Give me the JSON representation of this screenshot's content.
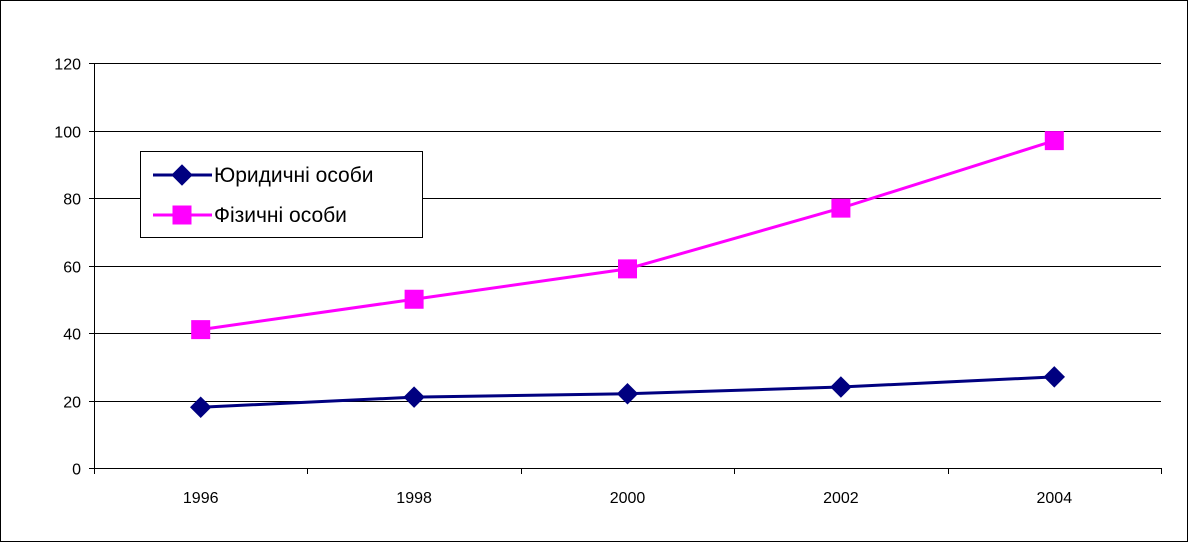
{
  "chart_data": {
    "type": "line",
    "title": "",
    "xlabel": "",
    "ylabel": "",
    "categories": [
      "1996",
      "1998",
      "2000",
      "2002",
      "2004"
    ],
    "ylim": [
      0,
      120
    ],
    "yticks": [
      0,
      20,
      40,
      60,
      80,
      100,
      120
    ],
    "grid": true,
    "legend_placement": "top-left",
    "series": [
      {
        "name": "Юридичні особи",
        "values": [
          18,
          21,
          22,
          24,
          27
        ],
        "color": "#000080",
        "marker": "diamond"
      },
      {
        "name": "Фізичні особи",
        "values": [
          41,
          50,
          59,
          77,
          97
        ],
        "color": "#FF00FF",
        "marker": "square"
      }
    ]
  }
}
